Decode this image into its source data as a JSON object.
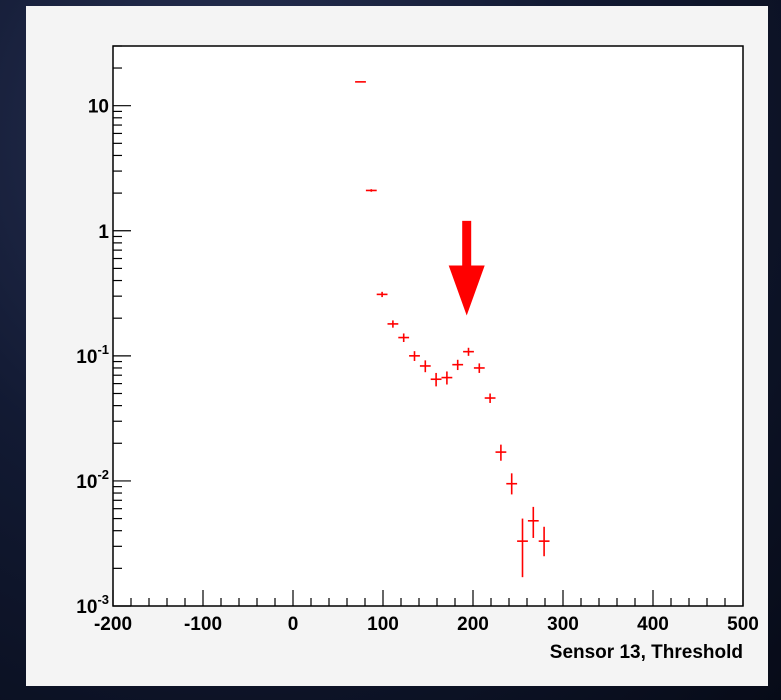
{
  "chart_data": {
    "type": "scatter",
    "title": "",
    "xlabel": "Sensor 13, Threshold",
    "ylabel": "",
    "xlim": [
      -200,
      500
    ],
    "ylim": [
      0.001,
      30
    ],
    "yscale": "log",
    "grid": false,
    "x_tick_labels": [
      "-200",
      "-100",
      "0",
      "100",
      "200",
      "300",
      "400",
      "500"
    ],
    "y_tick_labels": [
      {
        "value": 0.001,
        "base": "10",
        "exp": "-3"
      },
      {
        "value": 0.01,
        "base": "10",
        "exp": "-2"
      },
      {
        "value": 0.1,
        "base": "10",
        "exp": "-1"
      },
      {
        "value": 1,
        "base": "1",
        "exp": ""
      },
      {
        "value": 10,
        "base": "10",
        "exp": ""
      }
    ],
    "series": [
      {
        "color": "#ff0000",
        "points": [
          {
            "x": 75,
            "y": 15.5,
            "ylo": 15.5,
            "yhi": 15.5
          },
          {
            "x": 87,
            "y": 2.1,
            "ylo": 2.05,
            "yhi": 2.15
          },
          {
            "x": 99,
            "y": 0.31,
            "ylo": 0.295,
            "yhi": 0.325
          },
          {
            "x": 111,
            "y": 0.18,
            "ylo": 0.168,
            "yhi": 0.192
          },
          {
            "x": 123,
            "y": 0.14,
            "ylo": 0.129,
            "yhi": 0.151
          },
          {
            "x": 135,
            "y": 0.1,
            "ylo": 0.091,
            "yhi": 0.109
          },
          {
            "x": 147,
            "y": 0.083,
            "ylo": 0.074,
            "yhi": 0.092
          },
          {
            "x": 159,
            "y": 0.065,
            "ylo": 0.057,
            "yhi": 0.073
          },
          {
            "x": 171,
            "y": 0.067,
            "ylo": 0.059,
            "yhi": 0.075
          },
          {
            "x": 183,
            "y": 0.085,
            "ylo": 0.077,
            "yhi": 0.093
          },
          {
            "x": 195,
            "y": 0.108,
            "ylo": 0.1,
            "yhi": 0.116
          },
          {
            "x": 207,
            "y": 0.08,
            "ylo": 0.073,
            "yhi": 0.087
          },
          {
            "x": 219,
            "y": 0.046,
            "ylo": 0.042,
            "yhi": 0.05
          },
          {
            "x": 231,
            "y": 0.017,
            "ylo": 0.0145,
            "yhi": 0.0195
          },
          {
            "x": 243,
            "y": 0.0095,
            "ylo": 0.0078,
            "yhi": 0.0115
          },
          {
            "x": 255,
            "y": 0.0033,
            "ylo": 0.0017,
            "yhi": 0.005
          },
          {
            "x": 267,
            "y": 0.0048,
            "ylo": 0.0035,
            "yhi": 0.0062
          },
          {
            "x": 279,
            "y": 0.0033,
            "ylo": 0.0025,
            "yhi": 0.0043
          }
        ]
      }
    ],
    "annotations": [
      {
        "type": "arrow",
        "color": "#ff0000",
        "x": 193,
        "y_from": 1.2,
        "y_to": 0.21
      }
    ]
  }
}
